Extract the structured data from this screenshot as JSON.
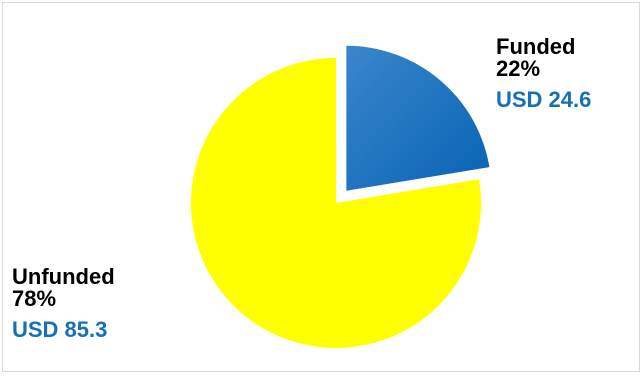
{
  "chart_data": {
    "type": "pie",
    "title": "",
    "slices": [
      {
        "label": "Funded",
        "percent_label": "22%",
        "amount_label": "USD 24.6",
        "value": 24.6,
        "percent": 22,
        "color": "#0b6fbf",
        "exploded": true
      },
      {
        "label": "Unfunded",
        "percent_label": "78%",
        "amount_label": "USD 85.3",
        "value": 85.3,
        "percent": 78,
        "color": "#ffff00",
        "exploded": false
      }
    ]
  },
  "colors": {
    "amount_text": "#1570b8",
    "name_text": "#000000"
  }
}
